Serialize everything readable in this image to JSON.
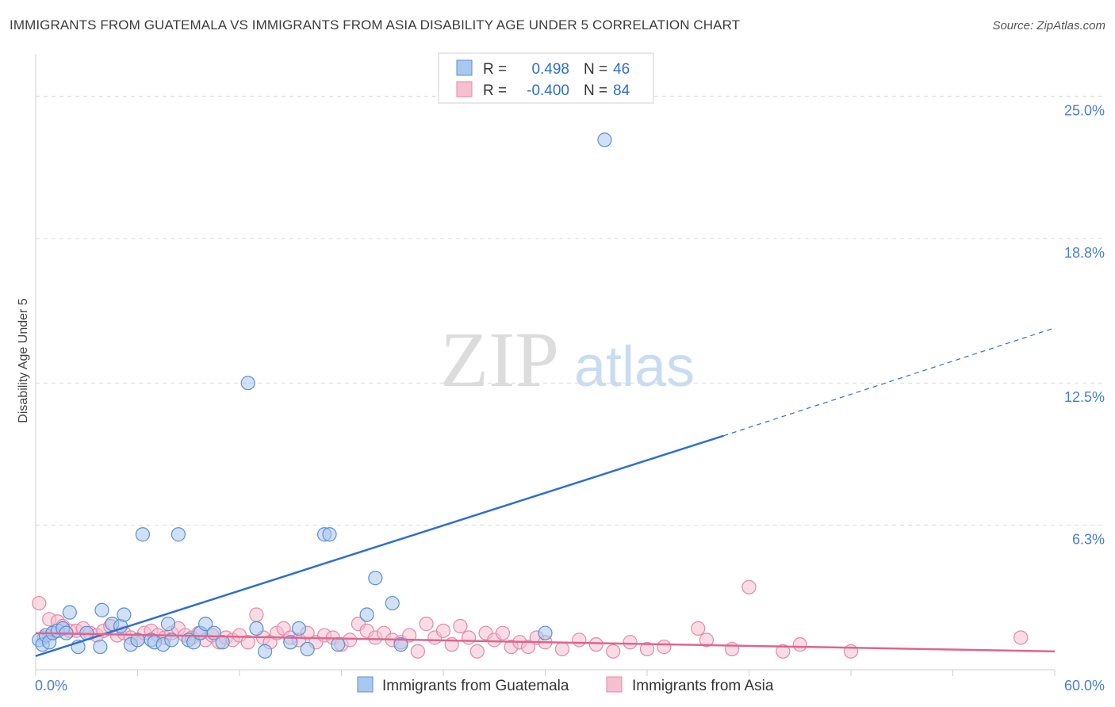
{
  "header": {
    "title": "IMMIGRANTS FROM GUATEMALA VS IMMIGRANTS FROM ASIA DISABILITY AGE UNDER 5 CORRELATION CHART",
    "source": "Source: ZipAtlas.com"
  },
  "watermark": {
    "zip": "ZIP",
    "atlas": "atlas"
  },
  "colors": {
    "guatemala_fill": "#a9c8ef",
    "guatemala_stroke": "#5b8fd6",
    "guatemala_line": "#2e6fd1",
    "asia_fill": "#f6bfd0",
    "asia_stroke": "#e28aa8",
    "asia_line": "#e0648e",
    "axis_label_blue": "#4a7fcc",
    "grid": "#d9d9d9"
  },
  "stats_box": {
    "rows": [
      {
        "r_label": "R =",
        "r_value": "0.498",
        "n_label": "N =",
        "n_value": "46"
      },
      {
        "r_label": "R =",
        "r_value": "-0.400",
        "n_label": "N =",
        "n_value": "84"
      }
    ]
  },
  "chart_data": {
    "type": "scatter",
    "title": "IMMIGRANTS FROM GUATEMALA VS IMMIGRANTS FROM ASIA DISABILITY AGE UNDER 5 CORRELATION CHART",
    "xlabel": "",
    "ylabel": "Disability Age Under 5",
    "xlim": [
      0,
      60
    ],
    "ylim": [
      0,
      26.5
    ],
    "x_tick_labels": [
      {
        "value": 0,
        "label": "0.0%"
      },
      {
        "value": 60,
        "label": "60.0%"
      }
    ],
    "y_tick_labels": [
      {
        "value": 6.3,
        "label": "6.3%"
      },
      {
        "value": 12.5,
        "label": "12.5%"
      },
      {
        "value": 18.8,
        "label": "18.8%"
      },
      {
        "value": 25.0,
        "label": "25.0%"
      }
    ],
    "grid": true,
    "legend_position": "bottom",
    "series": [
      {
        "name": "Immigrants from Guatemala",
        "color": "#a9c8ef",
        "stats": {
          "R": 0.498,
          "N": 46
        },
        "trend": {
          "x_start": 0,
          "y_start": 0.6,
          "x_solid_end": 40.5,
          "y_solid_end": 10.2,
          "x_end": 60,
          "y_end": 14.9
        },
        "points": [
          [
            0.2,
            1.3
          ],
          [
            0.4,
            1.1
          ],
          [
            0.6,
            1.5
          ],
          [
            0.8,
            1.2
          ],
          [
            1.0,
            1.6
          ],
          [
            1.3,
            1.7
          ],
          [
            1.6,
            1.8
          ],
          [
            1.8,
            1.6
          ],
          [
            2.0,
            2.5
          ],
          [
            2.5,
            1.0
          ],
          [
            3.0,
            1.6
          ],
          [
            3.8,
            1.0
          ],
          [
            3.9,
            2.6
          ],
          [
            4.5,
            2.0
          ],
          [
            5.0,
            1.9
          ],
          [
            5.2,
            2.4
          ],
          [
            5.6,
            1.1
          ],
          [
            6.0,
            1.3
          ],
          [
            6.3,
            5.9
          ],
          [
            6.8,
            1.3
          ],
          [
            7.0,
            1.2
          ],
          [
            7.5,
            1.1
          ],
          [
            7.8,
            2.0
          ],
          [
            8.0,
            1.3
          ],
          [
            8.4,
            5.9
          ],
          [
            9.0,
            1.3
          ],
          [
            9.3,
            1.2
          ],
          [
            9.7,
            1.6
          ],
          [
            10.0,
            2.0
          ],
          [
            10.5,
            1.6
          ],
          [
            11.0,
            1.2
          ],
          [
            12.5,
            12.5
          ],
          [
            13.0,
            1.8
          ],
          [
            13.5,
            0.8
          ],
          [
            15.0,
            1.2
          ],
          [
            15.5,
            1.8
          ],
          [
            16.0,
            0.9
          ],
          [
            17.0,
            5.9
          ],
          [
            17.3,
            5.9
          ],
          [
            17.8,
            1.1
          ],
          [
            19.5,
            2.4
          ],
          [
            20.0,
            4.0
          ],
          [
            21.0,
            2.9
          ],
          [
            21.5,
            1.1
          ],
          [
            30.0,
            1.6
          ],
          [
            33.5,
            23.1
          ]
        ]
      },
      {
        "name": "Immigrants from Asia",
        "color": "#f6bfd0",
        "stats": {
          "R": -0.4,
          "N": 84
        },
        "trend": {
          "x_start": 0,
          "y_start": 1.6,
          "x_end": 60,
          "y_end": 0.8
        },
        "points": [
          [
            0.2,
            2.9
          ],
          [
            0.5,
            1.4
          ],
          [
            0.8,
            2.2
          ],
          [
            1.0,
            1.6
          ],
          [
            1.3,
            2.1
          ],
          [
            1.6,
            1.9
          ],
          [
            2.0,
            1.7
          ],
          [
            2.4,
            1.7
          ],
          [
            2.8,
            1.8
          ],
          [
            3.2,
            1.6
          ],
          [
            3.6,
            1.5
          ],
          [
            4.0,
            1.7
          ],
          [
            4.4,
            1.9
          ],
          [
            4.8,
            1.5
          ],
          [
            5.2,
            1.6
          ],
          [
            5.6,
            1.4
          ],
          [
            6.0,
            1.3
          ],
          [
            6.4,
            1.6
          ],
          [
            6.8,
            1.7
          ],
          [
            7.2,
            1.5
          ],
          [
            7.6,
            1.4
          ],
          [
            8.0,
            1.6
          ],
          [
            8.4,
            1.8
          ],
          [
            8.8,
            1.5
          ],
          [
            9.2,
            1.4
          ],
          [
            9.6,
            1.6
          ],
          [
            10.0,
            1.3
          ],
          [
            10.4,
            1.5
          ],
          [
            10.8,
            1.2
          ],
          [
            11.2,
            1.4
          ],
          [
            11.6,
            1.3
          ],
          [
            12.0,
            1.5
          ],
          [
            12.5,
            1.2
          ],
          [
            13.0,
            2.4
          ],
          [
            13.4,
            1.4
          ],
          [
            13.8,
            1.2
          ],
          [
            14.2,
            1.6
          ],
          [
            14.6,
            1.8
          ],
          [
            15.0,
            1.4
          ],
          [
            15.5,
            1.3
          ],
          [
            16.0,
            1.6
          ],
          [
            16.5,
            1.2
          ],
          [
            17.0,
            1.5
          ],
          [
            17.5,
            1.4
          ],
          [
            18.0,
            1.1
          ],
          [
            18.5,
            1.3
          ],
          [
            19.0,
            2.0
          ],
          [
            19.5,
            1.7
          ],
          [
            20.0,
            1.4
          ],
          [
            20.5,
            1.6
          ],
          [
            21.0,
            1.3
          ],
          [
            21.5,
            1.2
          ],
          [
            22.0,
            1.5
          ],
          [
            22.5,
            0.8
          ],
          [
            23.0,
            2.0
          ],
          [
            23.5,
            1.4
          ],
          [
            24.0,
            1.7
          ],
          [
            24.5,
            1.1
          ],
          [
            25.0,
            1.9
          ],
          [
            25.5,
            1.4
          ],
          [
            26.0,
            0.8
          ],
          [
            26.5,
            1.6
          ],
          [
            27.0,
            1.3
          ],
          [
            27.5,
            1.6
          ],
          [
            28.0,
            1.0
          ],
          [
            28.5,
            1.2
          ],
          [
            29.0,
            1.0
          ],
          [
            29.5,
            1.4
          ],
          [
            30.0,
            1.2
          ],
          [
            31.0,
            0.9
          ],
          [
            32.0,
            1.3
          ],
          [
            33.0,
            1.1
          ],
          [
            34.0,
            0.8
          ],
          [
            35.0,
            1.2
          ],
          [
            36.0,
            0.9
          ],
          [
            37.0,
            1.0
          ],
          [
            39.0,
            1.8
          ],
          [
            39.5,
            1.3
          ],
          [
            41.0,
            0.9
          ],
          [
            42.0,
            3.6
          ],
          [
            44.0,
            0.8
          ],
          [
            45.0,
            1.1
          ],
          [
            48.0,
            0.8
          ],
          [
            58.0,
            1.4
          ]
        ]
      }
    ]
  }
}
